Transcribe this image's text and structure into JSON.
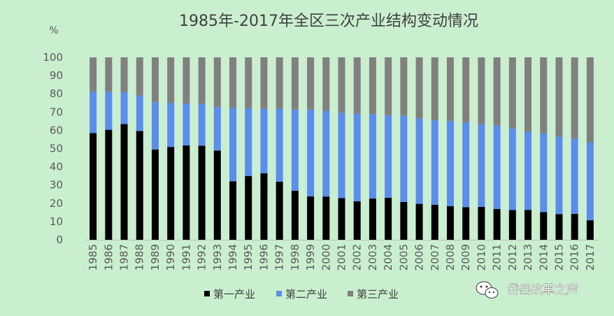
{
  "chart_data": {
    "type": "bar",
    "stacked": true,
    "title": "1985年-2017年全区三次产业结构变动情况",
    "ylabel": "%",
    "ylim": [
      0,
      100
    ],
    "yticks": [
      0,
      10,
      20,
      30,
      40,
      50,
      60,
      70,
      80,
      90,
      100
    ],
    "grid": false,
    "legend_position": "bottom",
    "categories": [
      "1985",
      "1986",
      "1987",
      "1988",
      "1989",
      "1990",
      "1991",
      "1992",
      "1993",
      "1994",
      "1995",
      "1996",
      "1997",
      "1998",
      "1999",
      "2000",
      "2001",
      "2002",
      "2003",
      "2004",
      "2005",
      "2006",
      "2007",
      "2008",
      "2009",
      "2010",
      "2011",
      "2012",
      "2013",
      "2014",
      "2015",
      "2016",
      "2017"
    ],
    "series": [
      {
        "name": "第一产业",
        "color": "#000000",
        "values": [
          58.5,
          60.3,
          63.4,
          59.6,
          49.5,
          50.9,
          51.7,
          51.6,
          48.9,
          32.1,
          35.0,
          36.5,
          31.8,
          26.9,
          23.8,
          23.7,
          22.8,
          21.1,
          22.6,
          23.0,
          20.7,
          19.7,
          19.2,
          18.4,
          17.9,
          18.0,
          16.9,
          16.3,
          16.4,
          15.2,
          14.1,
          14.2,
          10.7
        ]
      },
      {
        "name": "第二产业",
        "color": "#5b8def",
        "values": [
          22.7,
          20.8,
          17.5,
          19.5,
          26.0,
          24.0,
          23.0,
          22.8,
          23.8,
          40.2,
          37.0,
          35.2,
          40.0,
          44.5,
          47.5,
          47.0,
          46.8,
          47.9,
          46.1,
          45.3,
          47.2,
          46.8,
          46.3,
          46.6,
          46.5,
          45.3,
          45.7,
          44.7,
          42.8,
          43.1,
          42.4,
          41.2,
          42.6
        ]
      },
      {
        "name": "第三产业",
        "color": "#808080",
        "values": [
          18.8,
          18.9,
          19.1,
          20.9,
          24.5,
          25.1,
          25.3,
          25.6,
          27.3,
          27.7,
          28.0,
          28.3,
          28.2,
          28.6,
          28.7,
          29.3,
          30.4,
          31.0,
          31.3,
          31.7,
          32.1,
          33.5,
          34.5,
          35.0,
          35.6,
          36.7,
          37.4,
          39.0,
          40.8,
          41.7,
          43.5,
          44.6,
          46.7
        ]
      }
    ]
  },
  "watermark": {
    "icon": "wechat-icon",
    "text": "岱岳改革之声"
  }
}
